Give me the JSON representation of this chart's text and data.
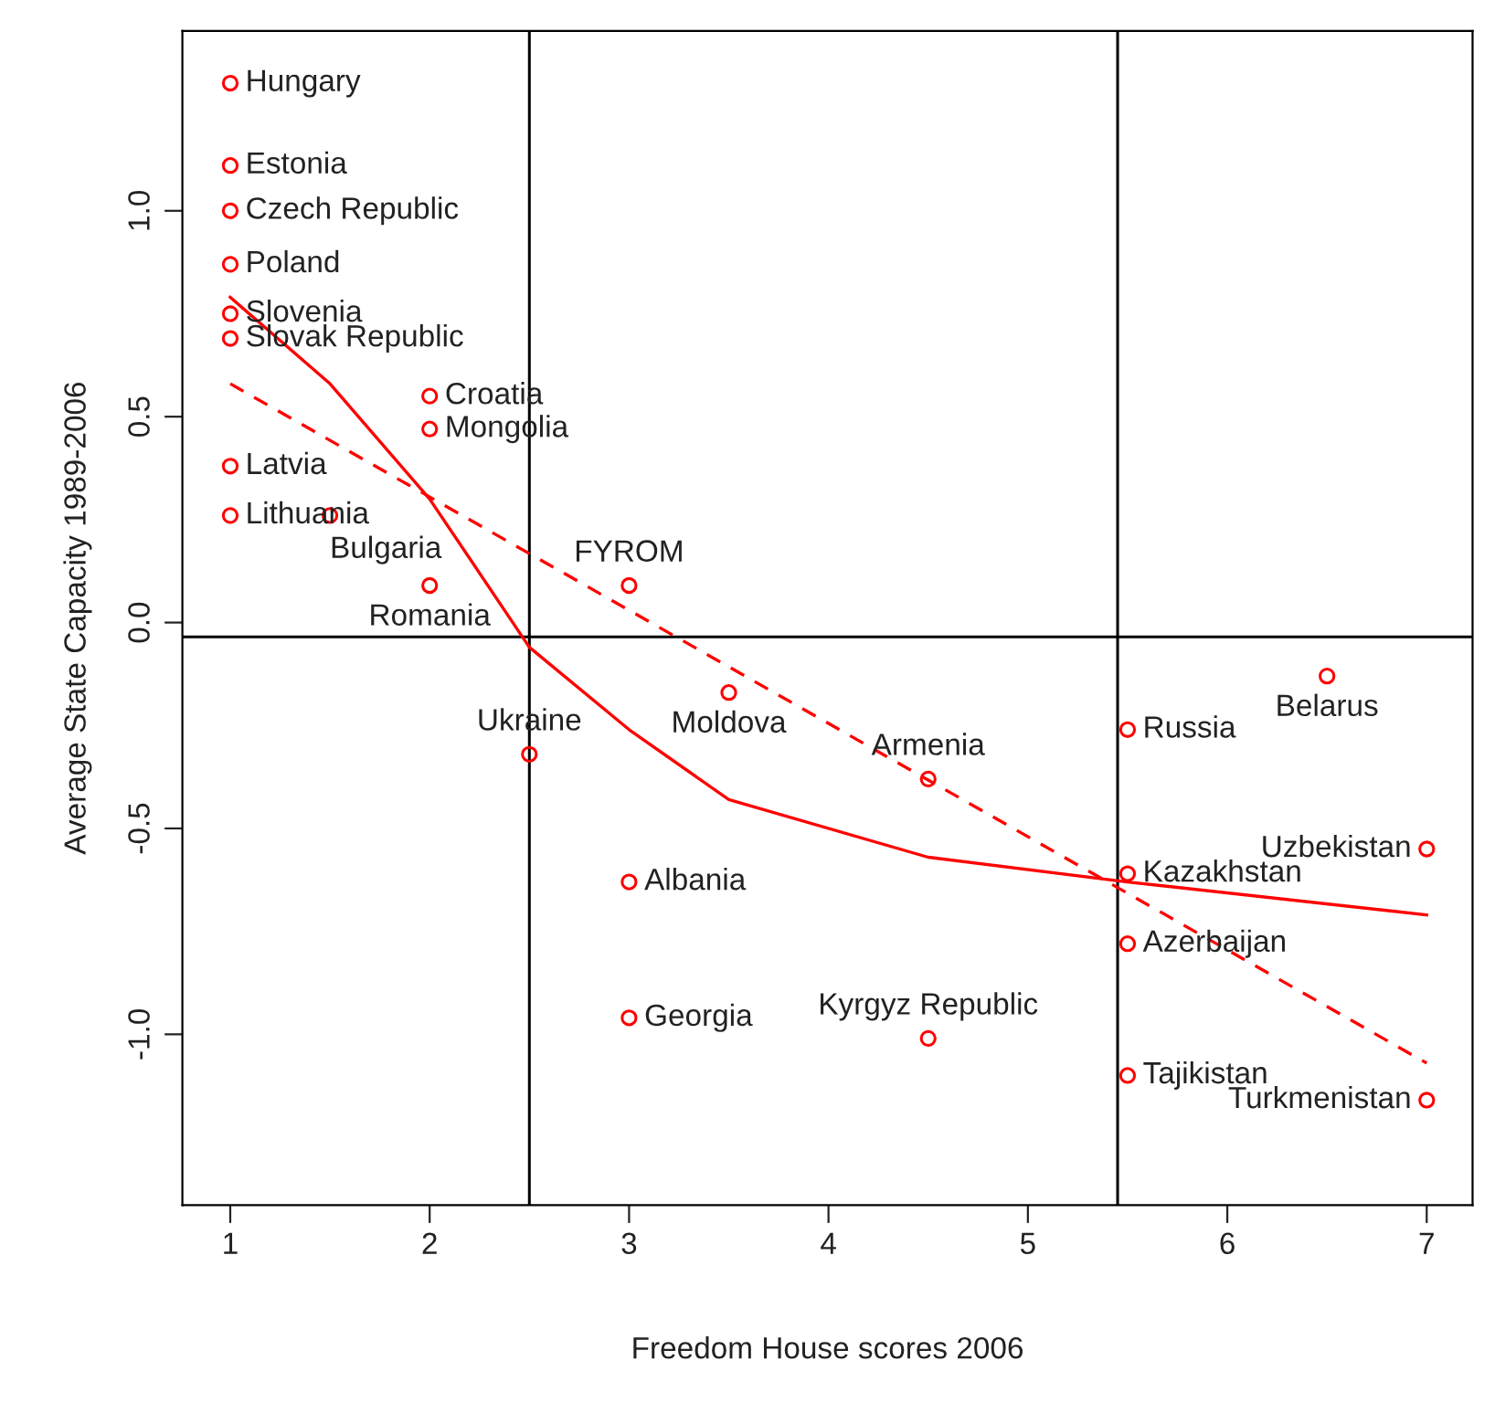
{
  "chart_data": {
    "type": "scatter",
    "xlabel": "Freedom House scores 2006",
    "ylabel": "Average State Capacity 1989-2006",
    "xlim": [
      0.76,
      7.23
    ],
    "ylim": [
      -1.415,
      1.437
    ],
    "xticks": [
      1,
      2,
      3,
      4,
      5,
      6,
      7
    ],
    "yticks": [
      {
        "value": -1.0,
        "label": "-1.0"
      },
      {
        "value": -0.5,
        "label": "-0.5"
      },
      {
        "value": 0.0,
        "label": "0.0"
      },
      {
        "value": 0.5,
        "label": "0.5"
      },
      {
        "value": 1.0,
        "label": "1.0"
      }
    ],
    "grid": false,
    "legend": false,
    "series": [
      {
        "color": "#ff0000",
        "marker": "circle",
        "x": [
          1,
          1,
          1,
          1,
          1,
          1,
          1,
          1,
          2,
          2,
          1.5,
          2,
          3,
          2.5,
          3.5,
          4.5,
          3,
          3,
          4.5,
          5.5,
          6.5,
          5.5,
          7,
          5.5,
          5.5,
          7
        ],
        "values": [
          1.31,
          1.11,
          1.0,
          0.87,
          0.75,
          0.69,
          0.38,
          0.26,
          0.55,
          0.47,
          0.26,
          0.09,
          0.09,
          -0.32,
          -0.17,
          -0.38,
          -0.63,
          -0.96,
          -1.01,
          -0.26,
          -0.13,
          -0.61,
          -0.55,
          -0.78,
          -1.1,
          -1.16
        ]
      },
      {
        "type": "line",
        "color": "#ff0000",
        "line_style": "solid",
        "x": [
          1,
          1.5,
          2,
          2.5,
          3,
          3.5,
          4.5,
          5.5,
          7
        ],
        "values": [
          0.79,
          0.58,
          0.3,
          -0.06,
          -0.26,
          -0.43,
          -0.57,
          -0.63,
          -0.71
        ]
      },
      {
        "type": "line",
        "color": "#ff0000",
        "line_style": "dashed",
        "x": [
          1,
          7
        ],
        "values": [
          0.58,
          -1.07
        ]
      }
    ],
    "ref_lines": [
      {
        "axis": "x",
        "value": 2.5,
        "color": "#000000"
      },
      {
        "axis": "x",
        "value": 5.45,
        "color": "#000000"
      },
      {
        "axis": "y",
        "value": -0.035,
        "color": "#000000"
      }
    ],
    "annotations": [
      {
        "text": "Hungary",
        "x": 1,
        "y": 1.31
      },
      {
        "text": "Estonia",
        "x": 1,
        "y": 1.11
      },
      {
        "text": "Czech Republic",
        "x": 1,
        "y": 1.0
      },
      {
        "text": "Poland",
        "x": 1,
        "y": 0.87
      },
      {
        "text": "Slovenia",
        "x": 1,
        "y": 0.75
      },
      {
        "text": "Slovak Republic",
        "x": 1,
        "y": 0.69
      },
      {
        "text": "Latvia",
        "x": 1,
        "y": 0.38
      },
      {
        "text": "Lithuania",
        "x": 1,
        "y": 0.26
      },
      {
        "text": "Croatia",
        "x": 2,
        "y": 0.55
      },
      {
        "text": "Mongolia",
        "x": 2,
        "y": 0.47
      },
      {
        "text": "Bulgaria",
        "x": 1.5,
        "y": 0.26
      },
      {
        "text": "Romania",
        "x": 2,
        "y": 0.09
      },
      {
        "text": "FYROM",
        "x": 3,
        "y": 0.09
      },
      {
        "text": "Ukraine",
        "x": 2.5,
        "y": -0.32
      },
      {
        "text": "Moldova",
        "x": 3.5,
        "y": -0.17
      },
      {
        "text": "Armenia",
        "x": 4.5,
        "y": -0.38
      },
      {
        "text": "Albania",
        "x": 3,
        "y": -0.63
      },
      {
        "text": "Georgia",
        "x": 3,
        "y": -0.96
      },
      {
        "text": "Kyrgyz Republic",
        "x": 4.5,
        "y": -1.01
      },
      {
        "text": "Russia",
        "x": 5.5,
        "y": -0.26
      },
      {
        "text": "Belarus",
        "x": 6.5,
        "y": -0.13
      },
      {
        "text": "Kazakhstan",
        "x": 5.5,
        "y": -0.61
      },
      {
        "text": "Uzbekistan",
        "x": 7,
        "y": -0.55
      },
      {
        "text": "Azerbaijan",
        "x": 5.5,
        "y": -0.78
      },
      {
        "text": "Tajikistan",
        "x": 5.5,
        "y": -1.1
      },
      {
        "text": "Turkmenistan",
        "x": 7,
        "y": -1.16
      }
    ]
  }
}
